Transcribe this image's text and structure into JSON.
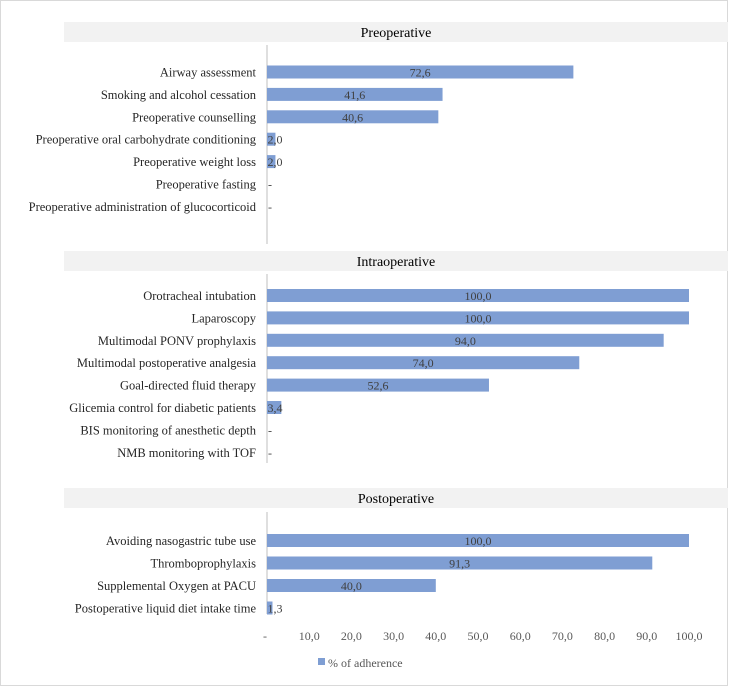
{
  "chart_data": {
    "type": "bar",
    "orientation": "horizontal",
    "xlim": [
      0,
      100
    ],
    "x_ticks": [
      "-",
      "10,0",
      "20,0",
      "30,0",
      "40,0",
      "50,0",
      "60,0",
      "70,0",
      "80,0",
      "90,0",
      "100,0"
    ],
    "legend": {
      "label": "% of adherence",
      "color": "#7f9ed3",
      "position": "bottom"
    },
    "groups": [
      {
        "title": "Preoperative",
        "items": [
          {
            "label": "Airway assessment",
            "value": 72.6,
            "value_label": "72,6"
          },
          {
            "label": "Smoking and alcohol cessation",
            "value": 41.6,
            "value_label": "41,6"
          },
          {
            "label": "Preoperative counselling",
            "value": 40.6,
            "value_label": "40,6"
          },
          {
            "label": "Preoperative oral carbohydrate conditioning",
            "value": 2.0,
            "value_label": "2,0"
          },
          {
            "label": "Preoperative weight loss",
            "value": 2.0,
            "value_label": "2,0"
          },
          {
            "label": "Preoperative fasting",
            "value": 0,
            "value_label": "-"
          },
          {
            "label": "Preoperative administration of glucocorticoid",
            "value": 0,
            "value_label": "-"
          }
        ]
      },
      {
        "title": "Intraoperative",
        "items": [
          {
            "label": "Orotracheal intubation",
            "value": 100.0,
            "value_label": "100,0"
          },
          {
            "label": "Laparoscopy",
            "value": 100.0,
            "value_label": "100,0"
          },
          {
            "label": "Multimodal PONV prophylaxis",
            "value": 94.0,
            "value_label": "94,0"
          },
          {
            "label": "Multimodal postoperative analgesia",
            "value": 74.0,
            "value_label": "74,0"
          },
          {
            "label": "Goal-directed fluid therapy",
            "value": 52.6,
            "value_label": "52,6"
          },
          {
            "label": "Glicemia control for diabetic patients",
            "value": 3.4,
            "value_label": "3,4"
          },
          {
            "label": "BIS monitoring of anesthetic depth",
            "value": 0,
            "value_label": "-"
          },
          {
            "label": "NMB monitoring with TOF",
            "value": 0,
            "value_label": "-"
          }
        ]
      },
      {
        "title": "Postoperative",
        "items": [
          {
            "label": "Avoiding nasogastric tube use",
            "value": 100.0,
            "value_label": "100,0"
          },
          {
            "label": "Thromboprophylaxis",
            "value": 91.3,
            "value_label": "91,3"
          },
          {
            "label": "Supplemental Oxygen at PACU",
            "value": 40.0,
            "value_label": "40,0"
          },
          {
            "label": "Postoperative liquid diet intake time",
            "value": 1.3,
            "value_label": "1,3"
          }
        ]
      }
    ]
  }
}
